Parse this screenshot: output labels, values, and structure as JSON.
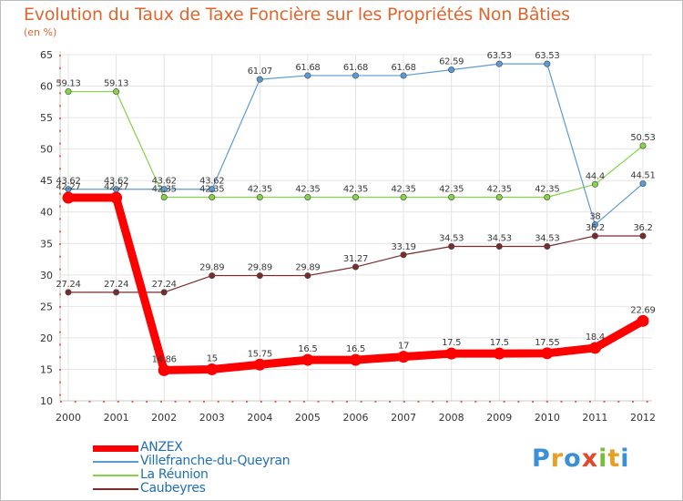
{
  "chart_data": {
    "type": "line",
    "title": "Evolution du Taux de Taxe Foncière sur les Propriétés Non Bâties",
    "unit_label": "(en %)",
    "xlabel": "",
    "ylabel": "",
    "ylim": [
      10,
      65
    ],
    "yticks": [
      10,
      15,
      20,
      25,
      30,
      35,
      40,
      45,
      50,
      55,
      60,
      65
    ],
    "categories": [
      "2000",
      "2001",
      "2002",
      "2003",
      "2004",
      "2005",
      "2006",
      "2007",
      "2008",
      "2009",
      "2010",
      "2011",
      "2012"
    ],
    "grid": true,
    "legend_position": "bottom-left",
    "series": [
      {
        "name": "ANZEX",
        "color": "#ff0000",
        "values": [
          42.27,
          42.27,
          14.86,
          15,
          15.75,
          16.5,
          16.5,
          17,
          17.5,
          17.5,
          17.55,
          18.4,
          22.69
        ],
        "labels": [
          "42.27",
          "42.27",
          "14.86",
          "15",
          "15.75",
          "16.5",
          "16.5",
          "17",
          "17.5",
          "17.5",
          "17.55",
          "18.4",
          "22.69"
        ]
      },
      {
        "name": "Villefranche-du-Queyran",
        "color": "#5b9bd5",
        "values": [
          43.62,
          43.62,
          43.62,
          43.62,
          61.07,
          61.68,
          61.68,
          61.68,
          62.59,
          63.53,
          63.53,
          38,
          44.51
        ],
        "labels": [
          "43.62",
          "43.62",
          "43.62",
          "43.62",
          "61.07",
          "61.68",
          "61.68",
          "61.68",
          "62.59",
          "63.53",
          "63.53",
          "38",
          "44.51"
        ]
      },
      {
        "name": "La Réunion",
        "color": "#86d34a",
        "values": [
          59.13,
          59.13,
          42.35,
          42.35,
          42.35,
          42.35,
          42.35,
          42.35,
          42.35,
          42.35,
          42.35,
          44.4,
          50.53
        ],
        "labels": [
          "59.13",
          "59.13",
          "42.35",
          "42.35",
          "42.35",
          "42.35",
          "42.35",
          "42.35",
          "42.35",
          "42.35",
          "42.35",
          "44.4",
          "50.53"
        ]
      },
      {
        "name": "Caubeyres",
        "color": "#7a2c2c",
        "values": [
          27.24,
          27.24,
          27.24,
          29.89,
          29.89,
          29.89,
          31.27,
          33.19,
          34.53,
          34.53,
          34.53,
          36.2,
          36.2
        ],
        "labels": [
          "27.24",
          "27.24",
          "27.24",
          "29.89",
          "29.89",
          "29.89",
          "31.27",
          "33.19",
          "34.53",
          "34.53",
          "34.53",
          "36.2",
          "36.2"
        ]
      }
    ]
  },
  "logo": {
    "text": "Proxiti",
    "letters": [
      {
        "ch": "P",
        "color": "#3b8fd6"
      },
      {
        "ch": "r",
        "color": "#e8a024"
      },
      {
        "ch": "o",
        "color": "#3b8fd6"
      },
      {
        "ch": "x",
        "color": "#e2482b"
      },
      {
        "ch": "i",
        "color": "#79bd3d"
      },
      {
        "ch": "t",
        "color": "#e8a024"
      },
      {
        "ch": "i",
        "color": "#3b8fd6"
      }
    ]
  }
}
